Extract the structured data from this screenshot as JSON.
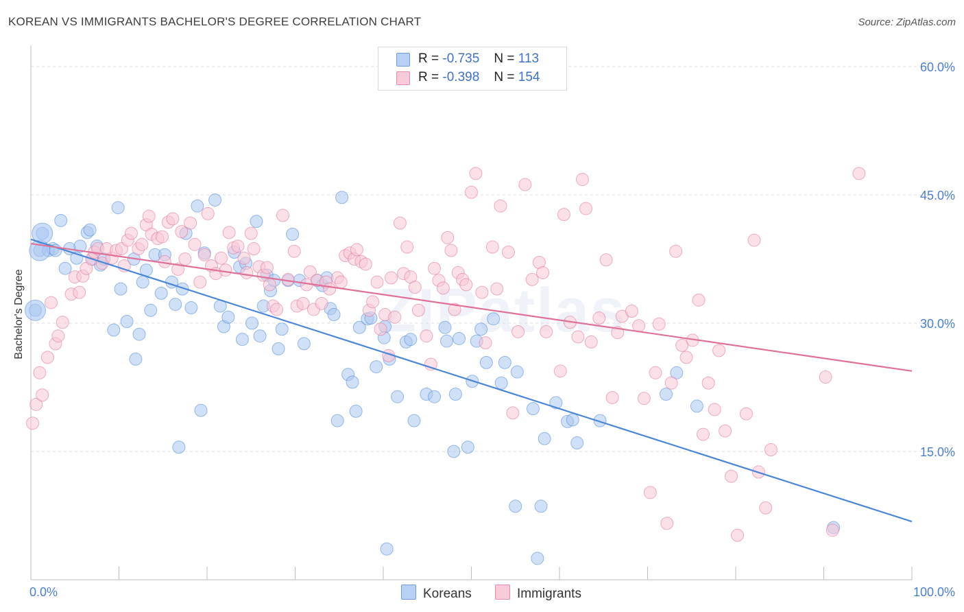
{
  "title": "KOREAN VS IMMIGRANTS BACHELOR'S DEGREE CORRELATION CHART",
  "source": "Source: ZipAtlas.com",
  "watermark": "ZIPatlas",
  "legend": {
    "rows": [
      {
        "r_label": "R =",
        "r_value": "-0.735",
        "n_label": "N =",
        "n_value": "113",
        "color": "#8fb4ec"
      },
      {
        "r_label": "R =",
        "r_value": "-0.398",
        "n_label": "N =",
        "n_value": "154",
        "color": "#f3a9c0"
      }
    ]
  },
  "bottom_legend": [
    {
      "label": "Koreans",
      "color": "#8fb4ec"
    },
    {
      "label": "Immigrants",
      "color": "#f3a9c0"
    }
  ],
  "chart_data": {
    "type": "scatter",
    "title": "KOREAN VS IMMIGRANTS BACHELOR'S DEGREE CORRELATION CHART",
    "xlabel": "",
    "ylabel": "Bachelor's Degree",
    "xlim": [
      0,
      100
    ],
    "ylim": [
      0,
      63
    ],
    "x_tick_labels": [
      "0.0%",
      "100.0%"
    ],
    "y_ticks": [
      15,
      30,
      45,
      60
    ],
    "y_tick_labels": [
      "15.0%",
      "30.0%",
      "45.0%",
      "60.0%"
    ],
    "grid": true,
    "series": [
      {
        "name": "Koreans",
        "color": "#4a86d8",
        "fill": "#a9c6f0",
        "trend": {
          "x": [
            0,
            100
          ],
          "y": [
            39.8,
            6.8
          ]
        },
        "points": [
          [
            1,
            38.5
          ],
          [
            0.5,
            31.5
          ],
          [
            1.3,
            40.5
          ],
          [
            2,
            38.5
          ],
          [
            2.5,
            38.7
          ],
          [
            2.8,
            38.5
          ],
          [
            3.4,
            42.0
          ],
          [
            3.9,
            36.4
          ],
          [
            4.4,
            38.7
          ],
          [
            5.2,
            37.6
          ],
          [
            5.6,
            39.0
          ],
          [
            6.4,
            40.6
          ],
          [
            6.7,
            40.9
          ],
          [
            7.0,
            37.5
          ],
          [
            7.5,
            39.0
          ],
          [
            7.9,
            36.8
          ],
          [
            8.3,
            37.5
          ],
          [
            9.4,
            29.2
          ],
          [
            9.9,
            43.5
          ],
          [
            10.2,
            34.0
          ],
          [
            10.9,
            30.2
          ],
          [
            11.7,
            37.5
          ],
          [
            11.9,
            25.8
          ],
          [
            12.3,
            28.7
          ],
          [
            12.7,
            34.8
          ],
          [
            13.1,
            36.2
          ],
          [
            13.6,
            31.5
          ],
          [
            14.1,
            38.0
          ],
          [
            14.8,
            33.5
          ],
          [
            15.2,
            38.0
          ],
          [
            16.0,
            34.8
          ],
          [
            16.4,
            32.2
          ],
          [
            16.8,
            15.5
          ],
          [
            17.2,
            34.0
          ],
          [
            17.6,
            40.5
          ],
          [
            18.2,
            31.8
          ],
          [
            18.9,
            43.7
          ],
          [
            19.3,
            19.8
          ],
          [
            19.7,
            38.2
          ],
          [
            20.9,
            44.4
          ],
          [
            21.5,
            32.0
          ],
          [
            21.9,
            29.6
          ],
          [
            22.4,
            30.7
          ],
          [
            23.1,
            38.3
          ],
          [
            23.7,
            36.6
          ],
          [
            24.0,
            28.1
          ],
          [
            24.4,
            37.0
          ],
          [
            25.1,
            30.0
          ],
          [
            25.6,
            41.9
          ],
          [
            26.0,
            28.5
          ],
          [
            26.4,
            32.0
          ],
          [
            26.8,
            35.6
          ],
          [
            27.2,
            33.8
          ],
          [
            27.6,
            35.0
          ],
          [
            28.1,
            27.0
          ],
          [
            28.5,
            29.3
          ],
          [
            29.2,
            35.0
          ],
          [
            29.7,
            40.4
          ],
          [
            30.5,
            35.0
          ],
          [
            31.0,
            27.6
          ],
          [
            32.5,
            35.0
          ],
          [
            33.1,
            34.4
          ],
          [
            33.6,
            35.3
          ],
          [
            34.0,
            31.7
          ],
          [
            34.4,
            31.0
          ],
          [
            35.3,
            44.7
          ],
          [
            34.8,
            18.6
          ],
          [
            36.0,
            24.0
          ],
          [
            36.5,
            23.1
          ],
          [
            36.9,
            19.7
          ],
          [
            37.3,
            29.5
          ],
          [
            38.2,
            30.5
          ],
          [
            38.6,
            30.6
          ],
          [
            39.2,
            24.9
          ],
          [
            40.2,
            29.6
          ],
          [
            40.1,
            28.3
          ],
          [
            40.4,
            3.6
          ],
          [
            40.7,
            25.8
          ],
          [
            41.6,
            21.4
          ],
          [
            42.6,
            27.8
          ],
          [
            43.1,
            28.1
          ],
          [
            43.5,
            18.6
          ],
          [
            44.9,
            21.7
          ],
          [
            45.8,
            21.4
          ],
          [
            47.0,
            29.5
          ],
          [
            47.2,
            27.9
          ],
          [
            48.0,
            15.0
          ],
          [
            48.2,
            21.7
          ],
          [
            48.6,
            28.2
          ],
          [
            49.6,
            15.5
          ],
          [
            50.1,
            23.2
          ],
          [
            50.6,
            27.9
          ],
          [
            51.1,
            29.3
          ],
          [
            51.7,
            25.4
          ],
          [
            52.5,
            30.5
          ],
          [
            53.4,
            23.0
          ],
          [
            53.8,
            25.4
          ],
          [
            55.0,
            8.6
          ],
          [
            55.2,
            24.3
          ],
          [
            57.0,
            20.0
          ],
          [
            57.5,
            2.5
          ],
          [
            57.9,
            8.6
          ],
          [
            58.3,
            16.5
          ],
          [
            59.6,
            20.7
          ],
          [
            60.9,
            18.5
          ],
          [
            61.5,
            18.7
          ],
          [
            62.0,
            16.0
          ],
          [
            64.6,
            18.6
          ],
          [
            72.1,
            21.7
          ],
          [
            73.3,
            24.2
          ],
          [
            75.6,
            20.3
          ],
          [
            91.1,
            6.1
          ]
        ],
        "big_points": [
          [
            1,
            38.5
          ],
          [
            0.5,
            31.5
          ],
          [
            1.3,
            40.5
          ]
        ]
      },
      {
        "name": "Immigrants",
        "color": "#e07098",
        "fill": "#f8c6d5",
        "trend": {
          "x": [
            0,
            100
          ],
          "y": [
            39.3,
            24.4
          ]
        },
        "points": [
          [
            0.2,
            18.3
          ],
          [
            0.6,
            20.5
          ],
          [
            1.0,
            24.2
          ],
          [
            1.3,
            21.6
          ],
          [
            1.9,
            26.0
          ],
          [
            2.3,
            32.4
          ],
          [
            2.8,
            27.6
          ],
          [
            3.1,
            28.5
          ],
          [
            3.6,
            30.1
          ],
          [
            4.6,
            33.4
          ],
          [
            5.0,
            35.4
          ],
          [
            5.5,
            33.6
          ],
          [
            5.9,
            35.5
          ],
          [
            6.3,
            36.4
          ],
          [
            6.9,
            37.5
          ],
          [
            7.2,
            38.3
          ],
          [
            7.6,
            38.7
          ],
          [
            8.1,
            37.0
          ],
          [
            8.6,
            38.7
          ],
          [
            9.2,
            37.6
          ],
          [
            9.7,
            38.5
          ],
          [
            10.3,
            38.7
          ],
          [
            10.6,
            36.7
          ],
          [
            11.0,
            39.7
          ],
          [
            11.4,
            40.5
          ],
          [
            12.2,
            38.7
          ],
          [
            12.6,
            39.2
          ],
          [
            13.1,
            41.5
          ],
          [
            13.4,
            42.5
          ],
          [
            13.7,
            40.4
          ],
          [
            14.4,
            39.9
          ],
          [
            14.9,
            40.1
          ],
          [
            15.2,
            37.2
          ],
          [
            15.6,
            41.8
          ],
          [
            16.1,
            42.2
          ],
          [
            16.7,
            36.3
          ],
          [
            17.1,
            40.7
          ],
          [
            17.5,
            37.5
          ],
          [
            18.1,
            41.7
          ],
          [
            18.6,
            39.2
          ],
          [
            19.2,
            34.8
          ],
          [
            19.7,
            38.0
          ],
          [
            20.1,
            42.8
          ],
          [
            20.5,
            36.7
          ],
          [
            21.0,
            35.8
          ],
          [
            21.6,
            37.6
          ],
          [
            22.1,
            36.2
          ],
          [
            22.5,
            40.6
          ],
          [
            23.0,
            38.8
          ],
          [
            23.5,
            39.0
          ],
          [
            24.2,
            37.6
          ],
          [
            24.5,
            35.9
          ],
          [
            25.0,
            40.5
          ],
          [
            25.3,
            38.7
          ],
          [
            25.9,
            36.6
          ],
          [
            26.4,
            35.6
          ],
          [
            26.8,
            36.5
          ],
          [
            27.1,
            34.5
          ],
          [
            27.5,
            32.0
          ],
          [
            27.9,
            31.6
          ],
          [
            28.6,
            42.6
          ],
          [
            29.2,
            35.1
          ],
          [
            29.9,
            38.4
          ],
          [
            30.2,
            32.0
          ],
          [
            30.9,
            32.3
          ],
          [
            31.3,
            34.5
          ],
          [
            31.7,
            36.0
          ],
          [
            32.1,
            31.6
          ],
          [
            32.5,
            35.0
          ],
          [
            33.0,
            32.3
          ],
          [
            33.5,
            34.8
          ],
          [
            33.9,
            34.0
          ],
          [
            34.8,
            35.3
          ],
          [
            35.2,
            34.8
          ],
          [
            35.7,
            37.9
          ],
          [
            36.2,
            38.2
          ],
          [
            36.7,
            37.5
          ],
          [
            37.0,
            38.6
          ],
          [
            37.5,
            37.2
          ],
          [
            38.0,
            36.9
          ],
          [
            38.4,
            31.5
          ],
          [
            38.8,
            32.5
          ],
          [
            39.3,
            34.8
          ],
          [
            39.7,
            29.3
          ],
          [
            40.2,
            31.0
          ],
          [
            40.6,
            26.2
          ],
          [
            40.9,
            35.3
          ],
          [
            41.3,
            30.7
          ],
          [
            41.9,
            41.7
          ],
          [
            42.3,
            35.8
          ],
          [
            42.7,
            38.9
          ],
          [
            43.1,
            35.4
          ],
          [
            43.6,
            34.2
          ],
          [
            44.0,
            31.5
          ],
          [
            44.9,
            28.5
          ],
          [
            45.4,
            25.2
          ],
          [
            45.8,
            36.4
          ],
          [
            46.3,
            35.0
          ],
          [
            46.8,
            34.1
          ],
          [
            47.3,
            40.0
          ],
          [
            47.7,
            38.5
          ],
          [
            48.1,
            31.6
          ],
          [
            48.5,
            35.9
          ],
          [
            49.0,
            35.1
          ],
          [
            49.4,
            34.5
          ],
          [
            50.0,
            45.3
          ],
          [
            50.5,
            47.5
          ],
          [
            51.2,
            33.6
          ],
          [
            51.6,
            27.7
          ],
          [
            52.4,
            38.9
          ],
          [
            52.9,
            34.0
          ],
          [
            53.3,
            43.7
          ],
          [
            54.2,
            38.3
          ],
          [
            54.7,
            19.5
          ],
          [
            55.3,
            29.0
          ],
          [
            56.1,
            46.2
          ],
          [
            56.9,
            35.1
          ],
          [
            57.7,
            37.1
          ],
          [
            58.1,
            35.9
          ],
          [
            58.5,
            29.0
          ],
          [
            60.1,
            24.4
          ],
          [
            60.5,
            42.7
          ],
          [
            61.2,
            30.1
          ],
          [
            62.1,
            28.4
          ],
          [
            62.6,
            46.8
          ],
          [
            63.0,
            43.4
          ],
          [
            63.6,
            27.8
          ],
          [
            64.5,
            30.6
          ],
          [
            65.3,
            37.4
          ],
          [
            66.0,
            21.3
          ],
          [
            66.6,
            28.9
          ],
          [
            67.1,
            30.8
          ],
          [
            68.2,
            31.4
          ],
          [
            69.0,
            29.7
          ],
          [
            69.6,
            21.2
          ],
          [
            70.3,
            10.2
          ],
          [
            70.9,
            24.2
          ],
          [
            71.3,
            29.9
          ],
          [
            72.2,
            6.6
          ],
          [
            72.7,
            23.0
          ],
          [
            73.2,
            38.4
          ],
          [
            73.9,
            27.4
          ],
          [
            74.4,
            26.0
          ],
          [
            75.1,
            28.0
          ],
          [
            75.8,
            32.7
          ],
          [
            76.3,
            17.0
          ],
          [
            76.9,
            23.0
          ],
          [
            77.6,
            19.9
          ],
          [
            78.1,
            26.8
          ],
          [
            78.8,
            17.4
          ],
          [
            79.5,
            12.1
          ],
          [
            80.2,
            5.2
          ],
          [
            81.2,
            19.4
          ],
          [
            82.1,
            39.7
          ],
          [
            82.6,
            12.6
          ],
          [
            83.4,
            8.4
          ],
          [
            84.0,
            15.2
          ],
          [
            90.2,
            23.7
          ],
          [
            91.0,
            5.8
          ],
          [
            94.0,
            47.5
          ]
        ]
      }
    ]
  }
}
